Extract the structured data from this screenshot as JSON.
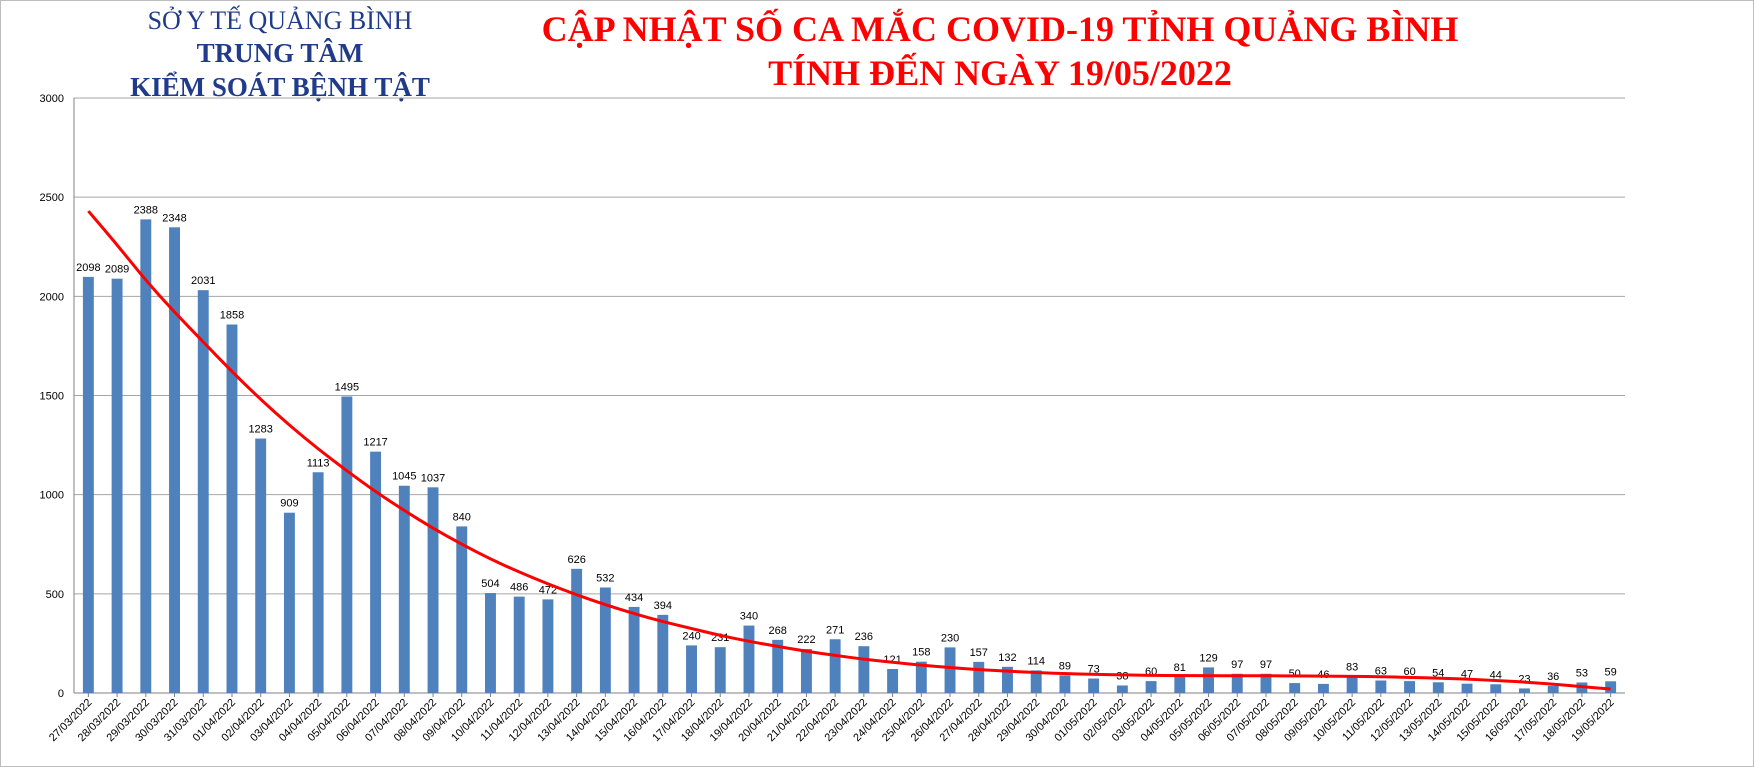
{
  "header": {
    "org_line1": "SỞ Y TẾ QUẢNG BÌNH",
    "org_line2": "TRUNG TÂM",
    "org_line3": "KIỂM SOÁT BỆNH TẬT",
    "title_line1": "CẬP NHẬT SỐ CA MẮC COVID-19 TỈNH QUẢNG BÌNH",
    "title_line2": "TÍNH ĐẾN NGÀY 19/05/2022"
  },
  "colors": {
    "bar": "#4f81bd",
    "trend": "#ff0000",
    "title": "#ff0000",
    "org": "#1f3b8a",
    "grid": "#a6a6a6"
  },
  "chart_data": {
    "type": "bar",
    "title": "CẬP NHẬT SỐ CA MẮC COVID-19 TỈNH QUẢNG BÌNH TÍNH ĐẾN NGÀY 19/05/2022",
    "ylim": [
      0,
      3000
    ],
    "yticks": [
      0,
      500,
      1000,
      1500,
      2000,
      2500,
      3000
    ],
    "grid": true,
    "legend": "none",
    "trendline": "polynomial",
    "categories": [
      "27/03/2022",
      "28/03/2022",
      "29/03/2022",
      "30/03/2022",
      "31/03/2022",
      "01/04/2022",
      "02/04/2022",
      "03/04/2022",
      "04/04/2022",
      "05/04/2022",
      "06/04/2022",
      "07/04/2022",
      "08/04/2022",
      "09/04/2022",
      "10/04/2022",
      "11/04/2022",
      "12/04/2022",
      "13/04/2022",
      "14/04/2022",
      "15/04/2022",
      "16/04/2022",
      "17/04/2022",
      "18/04/2022",
      "19/04/2022",
      "20/04/2022",
      "21/04/2022",
      "22/04/2022",
      "23/04/2022",
      "24/04/2022",
      "25/04/2022",
      "26/04/2022",
      "27/04/2022",
      "28/04/2022",
      "29/04/2022",
      "30/04/2022",
      "01/05/2022",
      "02/05/2022",
      "03/05/2022",
      "04/05/2022",
      "05/05/2022",
      "06/05/2022",
      "07/05/2022",
      "08/05/2022",
      "09/05/2022",
      "10/05/2022",
      "11/05/2022",
      "12/05/2022",
      "13/05/2022",
      "14/05/2022",
      "15/05/2022",
      "16/05/2022",
      "17/05/2022",
      "18/05/2022",
      "19/05/2022"
    ],
    "values": [
      2098,
      2089,
      2388,
      2348,
      2031,
      1858,
      1283,
      909,
      1113,
      1495,
      1217,
      1045,
      1037,
      840,
      504,
      486,
      472,
      626,
      532,
      434,
      394,
      240,
      231,
      340,
      268,
      222,
      271,
      236,
      121,
      158,
      230,
      157,
      132,
      114,
      89,
      73,
      38,
      60,
      81,
      129,
      97,
      97,
      50,
      46,
      83,
      63,
      60,
      54,
      47,
      44,
      23,
      36,
      53,
      59
    ],
    "trend_values": [
      2430,
      2260,
      2080,
      1920,
      1770,
      1620,
      1480,
      1350,
      1230,
      1120,
      1015,
      920,
      830,
      750,
      675,
      610,
      550,
      495,
      445,
      400,
      360,
      325,
      290,
      260,
      235,
      210,
      190,
      170,
      155,
      140,
      128,
      118,
      110,
      103,
      98,
      94,
      91,
      89,
      88,
      87,
      87,
      87,
      86,
      85,
      84,
      82,
      79,
      75,
      70,
      63,
      55,
      45,
      32,
      20
    ]
  }
}
